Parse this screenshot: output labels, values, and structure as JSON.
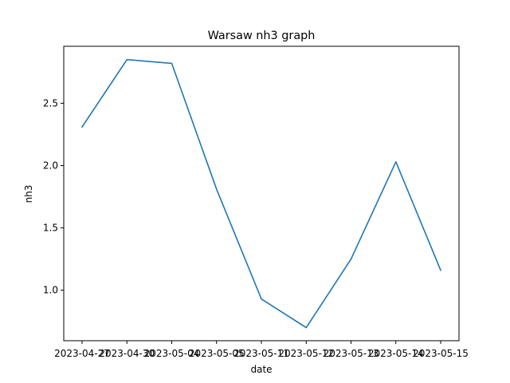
{
  "chart_data": {
    "type": "line",
    "title": "Warsaw nh3 graph",
    "xlabel": "date",
    "ylabel": "nh3",
    "x": [
      "2023-04-27",
      "2023-04-30",
      "2023-05-04",
      "2023-05-05",
      "2023-05-11",
      "2023-05-12",
      "2023-05-13",
      "2023-05-14",
      "2023-05-15"
    ],
    "series": [
      {
        "values": [
          2.31,
          2.85,
          2.82,
          1.81,
          0.93,
          0.7,
          1.25,
          2.03,
          1.16
        ]
      }
    ],
    "yticks": [
      1.0,
      1.5,
      2.0,
      2.5
    ],
    "ytick_labels": [
      "1.0",
      "1.5",
      "2.0",
      "2.5"
    ],
    "ylim": [
      0.595,
      2.957
    ],
    "line_color": "#1f77b4",
    "grid": false
  }
}
